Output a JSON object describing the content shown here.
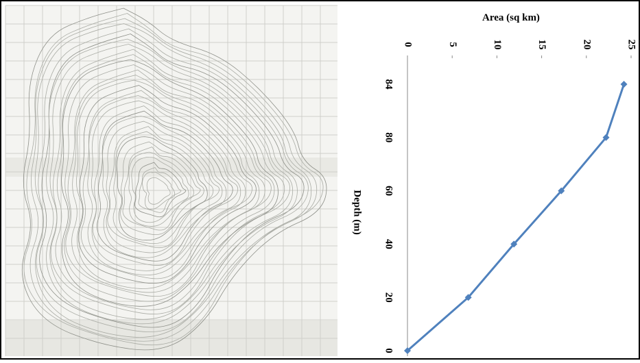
{
  "chart_data": {
    "type": "line",
    "title": "Area (sq km)",
    "xlabel": "Depth (m)",
    "categories": [
      "0",
      "20",
      "40",
      "60",
      "80",
      "84"
    ],
    "values": [
      0,
      6.8,
      11.9,
      17.2,
      22.2,
      24.2
    ],
    "color": "#4f81bd",
    "ylim": [
      0,
      25
    ],
    "yticks": [
      0,
      5,
      10,
      15,
      20,
      25
    ]
  }
}
